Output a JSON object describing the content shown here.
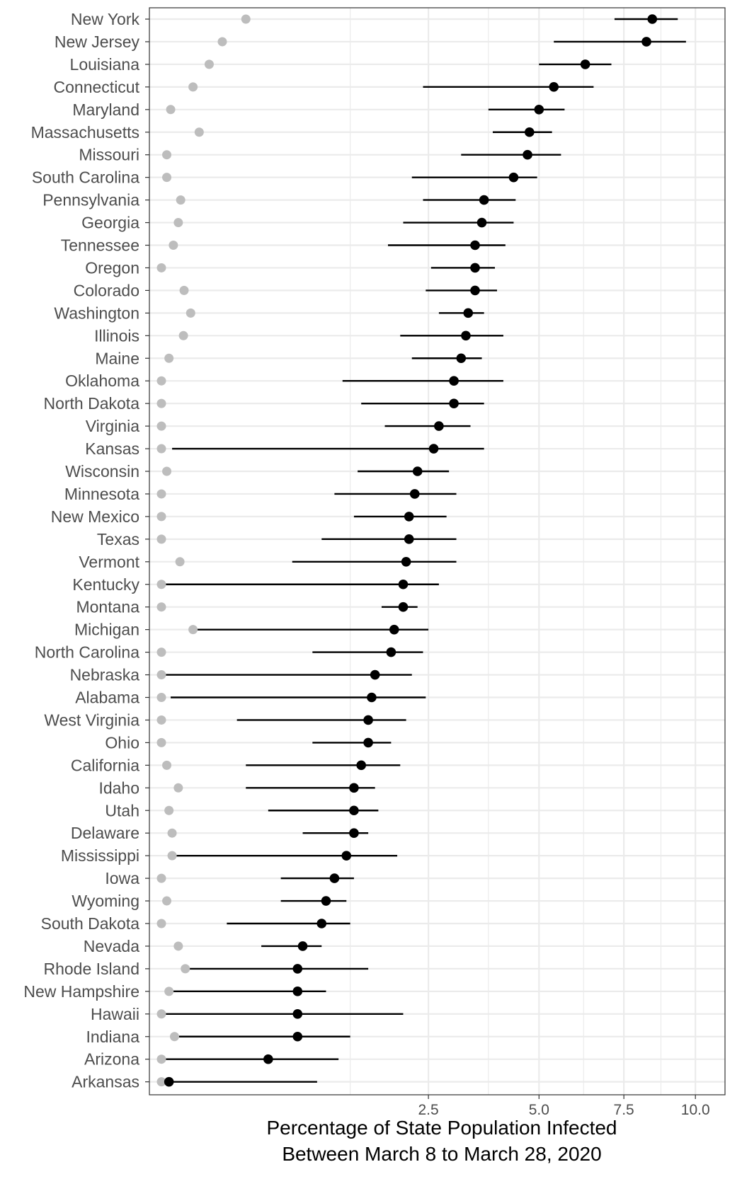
{
  "chart_data": {
    "type": "dot-and-interval",
    "xlabel_line1": "Percentage of State Population Infected",
    "xlabel_line2": "Between March 8 to March 28, 2020",
    "xlim": [
      0,
      10.0
    ],
    "x_scale": "sqrt",
    "x_ticks": [
      2.5,
      5.0,
      7.5,
      10.0
    ],
    "x_tick_labels": [
      "2.5",
      "5.0",
      "7.5",
      "10.0"
    ],
    "grid": true,
    "colors": {
      "estimate": "#000000",
      "reported": "#bdbdbd",
      "grid": "#ebebeb",
      "panel_border": "#333333"
    },
    "states": [
      {
        "name": "New York",
        "estimate": 8.45,
        "lower": 7.2,
        "upper": 9.35,
        "reported": 0.25
      },
      {
        "name": "New Jersey",
        "estimate": 8.25,
        "lower": 5.4,
        "upper": 9.65,
        "reported": 0.13
      },
      {
        "name": "Louisiana",
        "estimate": 6.3,
        "lower": 5.0,
        "upper": 7.1,
        "reported": 0.08
      },
      {
        "name": "Connecticut",
        "estimate": 5.4,
        "lower": 2.4,
        "upper": 6.55,
        "reported": 0.035
      },
      {
        "name": "Maryland",
        "estimate": 5.0,
        "lower": 3.75,
        "upper": 5.7,
        "reported": 0.003
      },
      {
        "name": "Massachusetts",
        "estimate": 4.75,
        "lower": 3.85,
        "upper": 5.35,
        "reported": 0.05
      },
      {
        "name": "Missouri",
        "estimate": 4.7,
        "lower": 3.15,
        "upper": 5.6,
        "reported": 0.001
      },
      {
        "name": "South Carolina",
        "estimate": 4.35,
        "lower": 2.2,
        "upper": 4.95,
        "reported": 0.001
      },
      {
        "name": "Pennsylvania",
        "estimate": 3.65,
        "lower": 2.4,
        "upper": 4.4,
        "reported": 0.013
      },
      {
        "name": "Georgia",
        "estimate": 3.6,
        "lower": 2.05,
        "upper": 4.35,
        "reported": 0.01
      },
      {
        "name": "Tennessee",
        "estimate": 3.45,
        "lower": 1.8,
        "upper": 4.15,
        "reported": 0.005
      },
      {
        "name": "Oregon",
        "estimate": 3.45,
        "lower": 2.55,
        "upper": 3.9,
        "reported": 0.0
      },
      {
        "name": "Colorado",
        "estimate": 3.45,
        "lower": 2.45,
        "upper": 3.95,
        "reported": 0.018
      },
      {
        "name": "Washington",
        "estimate": 3.3,
        "lower": 2.7,
        "upper": 3.65,
        "reported": 0.03
      },
      {
        "name": "Illinois",
        "estimate": 3.25,
        "lower": 2.0,
        "upper": 4.1,
        "reported": 0.017
      },
      {
        "name": "Maine",
        "estimate": 3.15,
        "lower": 2.2,
        "upper": 3.6,
        "reported": 0.002
      },
      {
        "name": "Oklahoma",
        "estimate": 3.0,
        "lower": 1.15,
        "upper": 4.1,
        "reported": 0.0
      },
      {
        "name": "North Dakota",
        "estimate": 3.0,
        "lower": 1.4,
        "upper": 3.65,
        "reported": 0.0
      },
      {
        "name": "Virginia",
        "estimate": 2.7,
        "lower": 1.75,
        "upper": 3.35,
        "reported": 0.0
      },
      {
        "name": "Kansas",
        "estimate": 2.6,
        "lower": 0.004,
        "upper": 3.65,
        "reported": 0.0
      },
      {
        "name": "Wisconsin",
        "estimate": 2.3,
        "lower": 1.35,
        "upper": 2.9,
        "reported": 0.001
      },
      {
        "name": "Minnesota",
        "estimate": 2.25,
        "lower": 1.05,
        "upper": 3.05,
        "reported": 0.0
      },
      {
        "name": "New Mexico",
        "estimate": 2.15,
        "lower": 1.3,
        "upper": 2.85,
        "reported": 0.0
      },
      {
        "name": "Texas",
        "estimate": 2.15,
        "lower": 0.9,
        "upper": 3.05,
        "reported": 0.0
      },
      {
        "name": "Vermont",
        "estimate": 2.1,
        "lower": 0.6,
        "upper": 3.05,
        "reported": 0.012
      },
      {
        "name": "Kentucky",
        "estimate": 2.05,
        "lower": 0.0,
        "upper": 2.7,
        "reported": 0.0
      },
      {
        "name": "Montana",
        "estimate": 2.05,
        "lower": 1.7,
        "upper": 2.3,
        "reported": 0.0
      },
      {
        "name": "Michigan",
        "estimate": 1.9,
        "lower": 0.04,
        "upper": 2.5,
        "reported": 0.035
      },
      {
        "name": "North Carolina",
        "estimate": 1.85,
        "lower": 0.8,
        "upper": 2.4,
        "reported": 0.0
      },
      {
        "name": "Nebraska",
        "estimate": 1.6,
        "lower": 0.0,
        "upper": 2.2,
        "reported": 0.0
      },
      {
        "name": "Alabama",
        "estimate": 1.55,
        "lower": 0.003,
        "upper": 2.45,
        "reported": 0.0
      },
      {
        "name": "West Virginia",
        "estimate": 1.5,
        "lower": 0.2,
        "upper": 2.1,
        "reported": 0.0
      },
      {
        "name": "Ohio",
        "estimate": 1.5,
        "lower": 0.8,
        "upper": 1.85,
        "reported": 0.0
      },
      {
        "name": "California",
        "estimate": 1.4,
        "lower": 0.25,
        "upper": 2.0,
        "reported": 0.001
      },
      {
        "name": "Idaho",
        "estimate": 1.3,
        "lower": 0.25,
        "upper": 1.6,
        "reported": 0.01
      },
      {
        "name": "Utah",
        "estimate": 1.3,
        "lower": 0.4,
        "upper": 1.65,
        "reported": 0.002
      },
      {
        "name": "Delaware",
        "estimate": 1.3,
        "lower": 0.7,
        "upper": 1.5,
        "reported": 0.004
      },
      {
        "name": "Mississippi",
        "estimate": 1.2,
        "lower": 0.004,
        "upper": 1.95,
        "reported": 0.004
      },
      {
        "name": "Iowa",
        "estimate": 1.05,
        "lower": 0.5,
        "upper": 1.3,
        "reported": 0.0
      },
      {
        "name": "Wyoming",
        "estimate": 0.95,
        "lower": 0.5,
        "upper": 1.2,
        "reported": 0.001
      },
      {
        "name": "South Dakota",
        "estimate": 0.9,
        "lower": 0.15,
        "upper": 1.25,
        "reported": 0.0
      },
      {
        "name": "Nevada",
        "estimate": 0.7,
        "lower": 0.35,
        "upper": 0.9,
        "reported": 0.01
      },
      {
        "name": "Rhode Island",
        "estimate": 0.65,
        "lower": 0.02,
        "upper": 1.5,
        "reported": 0.02
      },
      {
        "name": "New Hampshire",
        "estimate": 0.65,
        "lower": 0.002,
        "upper": 0.95,
        "reported": 0.002
      },
      {
        "name": "Hawaii",
        "estimate": 0.65,
        "lower": 0.0,
        "upper": 2.05,
        "reported": 0.0
      },
      {
        "name": "Indiana",
        "estimate": 0.65,
        "lower": 0.006,
        "upper": 1.25,
        "reported": 0.006
      },
      {
        "name": "Arizona",
        "estimate": 0.4,
        "lower": 0.0,
        "upper": 1.1,
        "reported": 0.0
      },
      {
        "name": "Arkansas",
        "estimate": 0.002,
        "lower": 0.0,
        "upper": 0.85,
        "reported": 0.0
      }
    ]
  }
}
